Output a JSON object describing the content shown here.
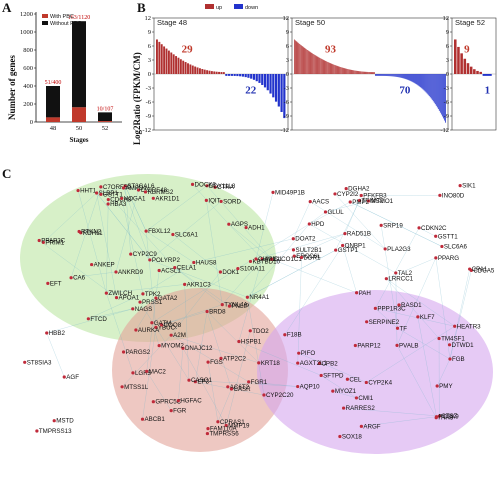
{
  "panels": {
    "a": "A",
    "b": "B",
    "c": "C"
  },
  "colors": {
    "with_pbc": "#c0392b",
    "without_pbc": "#111111",
    "up": "#b03030",
    "down": "#2233cc",
    "cluster_green": "#b7e39a",
    "cluster_red": "#e3a39a",
    "cluster_purple": "#d6a7ee"
  },
  "chart_a": {
    "type": "bar",
    "ylabel": "Number of genes",
    "xlabel": "Stages",
    "yticks": [
      "0",
      "200",
      "400",
      "600",
      "800",
      "1000",
      "1200"
    ],
    "ylim": [
      0,
      1200
    ],
    "legend": [
      "With PBC",
      "Without PBC"
    ],
    "categories": [
      "48",
      "50",
      "52"
    ],
    "with_pbc": [
      51,
      163,
      10
    ],
    "totals": [
      400,
      1120,
      107
    ],
    "bar_labels": [
      "51/400",
      "163/1120",
      "10/107"
    ]
  },
  "chart_b": {
    "type": "bar",
    "ylabel": "Log2Ratio (FPKM/CM)",
    "yticks": [
      "12",
      "9",
      "6",
      "3",
      "0",
      "-3",
      "-6",
      "-9",
      "-12"
    ],
    "ylim": [
      -12,
      12
    ],
    "legend": [
      "up",
      "down"
    ],
    "stages": [
      {
        "label": "Stage 48",
        "up": 29,
        "down": 22
      },
      {
        "label": "Stage 50",
        "up": 93,
        "down": 70
      },
      {
        "label": "Stage 52",
        "up": 9,
        "down": 1
      }
    ]
  },
  "network": {
    "genes": [
      "HHT1",
      "CYP2I2",
      "SLBP1",
      "INO80D",
      "ST3GAL6",
      "IQIT",
      "CTRA",
      "C20RF48",
      "DDX11L8",
      "C7ORF50",
      "MID49P1B",
      "SIK1",
      "PFKFB3",
      "DGHA2",
      "GSTT1",
      "DOCK8",
      "TRIM72",
      "RBRMS2",
      "AMPD1",
      "BRD8",
      "ZWILCH",
      "CDCA5",
      "YBUC",
      "ANKEP",
      "HPD",
      "AKR1D1",
      "AKR1C3",
      "GSTP1",
      "DOK1",
      "HBA3",
      "GSTT1",
      "CA6",
      "EFT",
      "ERCC6L",
      "TPK2",
      "FBXL12",
      "PAH",
      "SORD",
      "ADH1",
      "MSMO1",
      "CYP2C9",
      "APOA1",
      "LRRCC1",
      "CDCA8",
      "AURKA",
      "SLC6A6",
      "RDH11",
      "NR4A1",
      "ASIC1",
      "RTKN2",
      "TXNL4A",
      "CDKN2C",
      "HAUS8",
      "HOGA1",
      "AACS",
      "COQ8",
      "ACSL1",
      "PLA2G3",
      "PRIM1",
      "SLC6A1",
      "ONBP1",
      "NAGS",
      "PPARG",
      "GATA2",
      "SRP19",
      "POLYRP2",
      "RAD51B",
      "ANKRD9",
      "SULT2B1",
      "KBTBD10",
      "SLCO1C1",
      "FTCD",
      "PMP2",
      "PRSS1",
      "CPA1",
      "CELA1",
      "TAL2",
      "S100A11",
      "DDR1",
      "PPAP2C",
      "DOAT2",
      "PNLIP",
      "GLUL",
      "AGPS",
      "CHM1",
      "HSPB1",
      "LGR5",
      "RASD1",
      "PARGS2",
      "GATM",
      "CEL",
      "KRT18",
      "A2M",
      "PPP1R3C",
      "MAC2",
      "TDO2",
      "PMY",
      "MTSS1L",
      "DNAJC12",
      "PARP12",
      "CPRAS1",
      "EP3",
      "FGB",
      "FGR1",
      "MMP19",
      "TMPRSS6",
      "SOX18",
      "MYOM2",
      "PVALB",
      "FGR",
      "TM4SF1",
      "AC6T2",
      "SFTPD",
      "GPRC5C",
      "CYP2K4",
      "CYP2C20",
      "AQP10",
      "ATP2C2",
      "MYOZ1",
      "CASQ1",
      "CTSZ",
      "FGS",
      "CPB2",
      "HGFAC",
      "SERPINE2",
      "FAM110A",
      "HEATR3",
      "ABCB1",
      "TF",
      "CASR",
      "ITIH3",
      "F18B",
      "TMPRSS13",
      "CMI1",
      "DTWD1",
      "HBB2",
      "ARGF",
      "PCSK9",
      "AGF",
      "RARRES2",
      "PIFO",
      "MSTD",
      "KLF7",
      "AGXT2L1",
      "ST8SIA3"
    ]
  }
}
